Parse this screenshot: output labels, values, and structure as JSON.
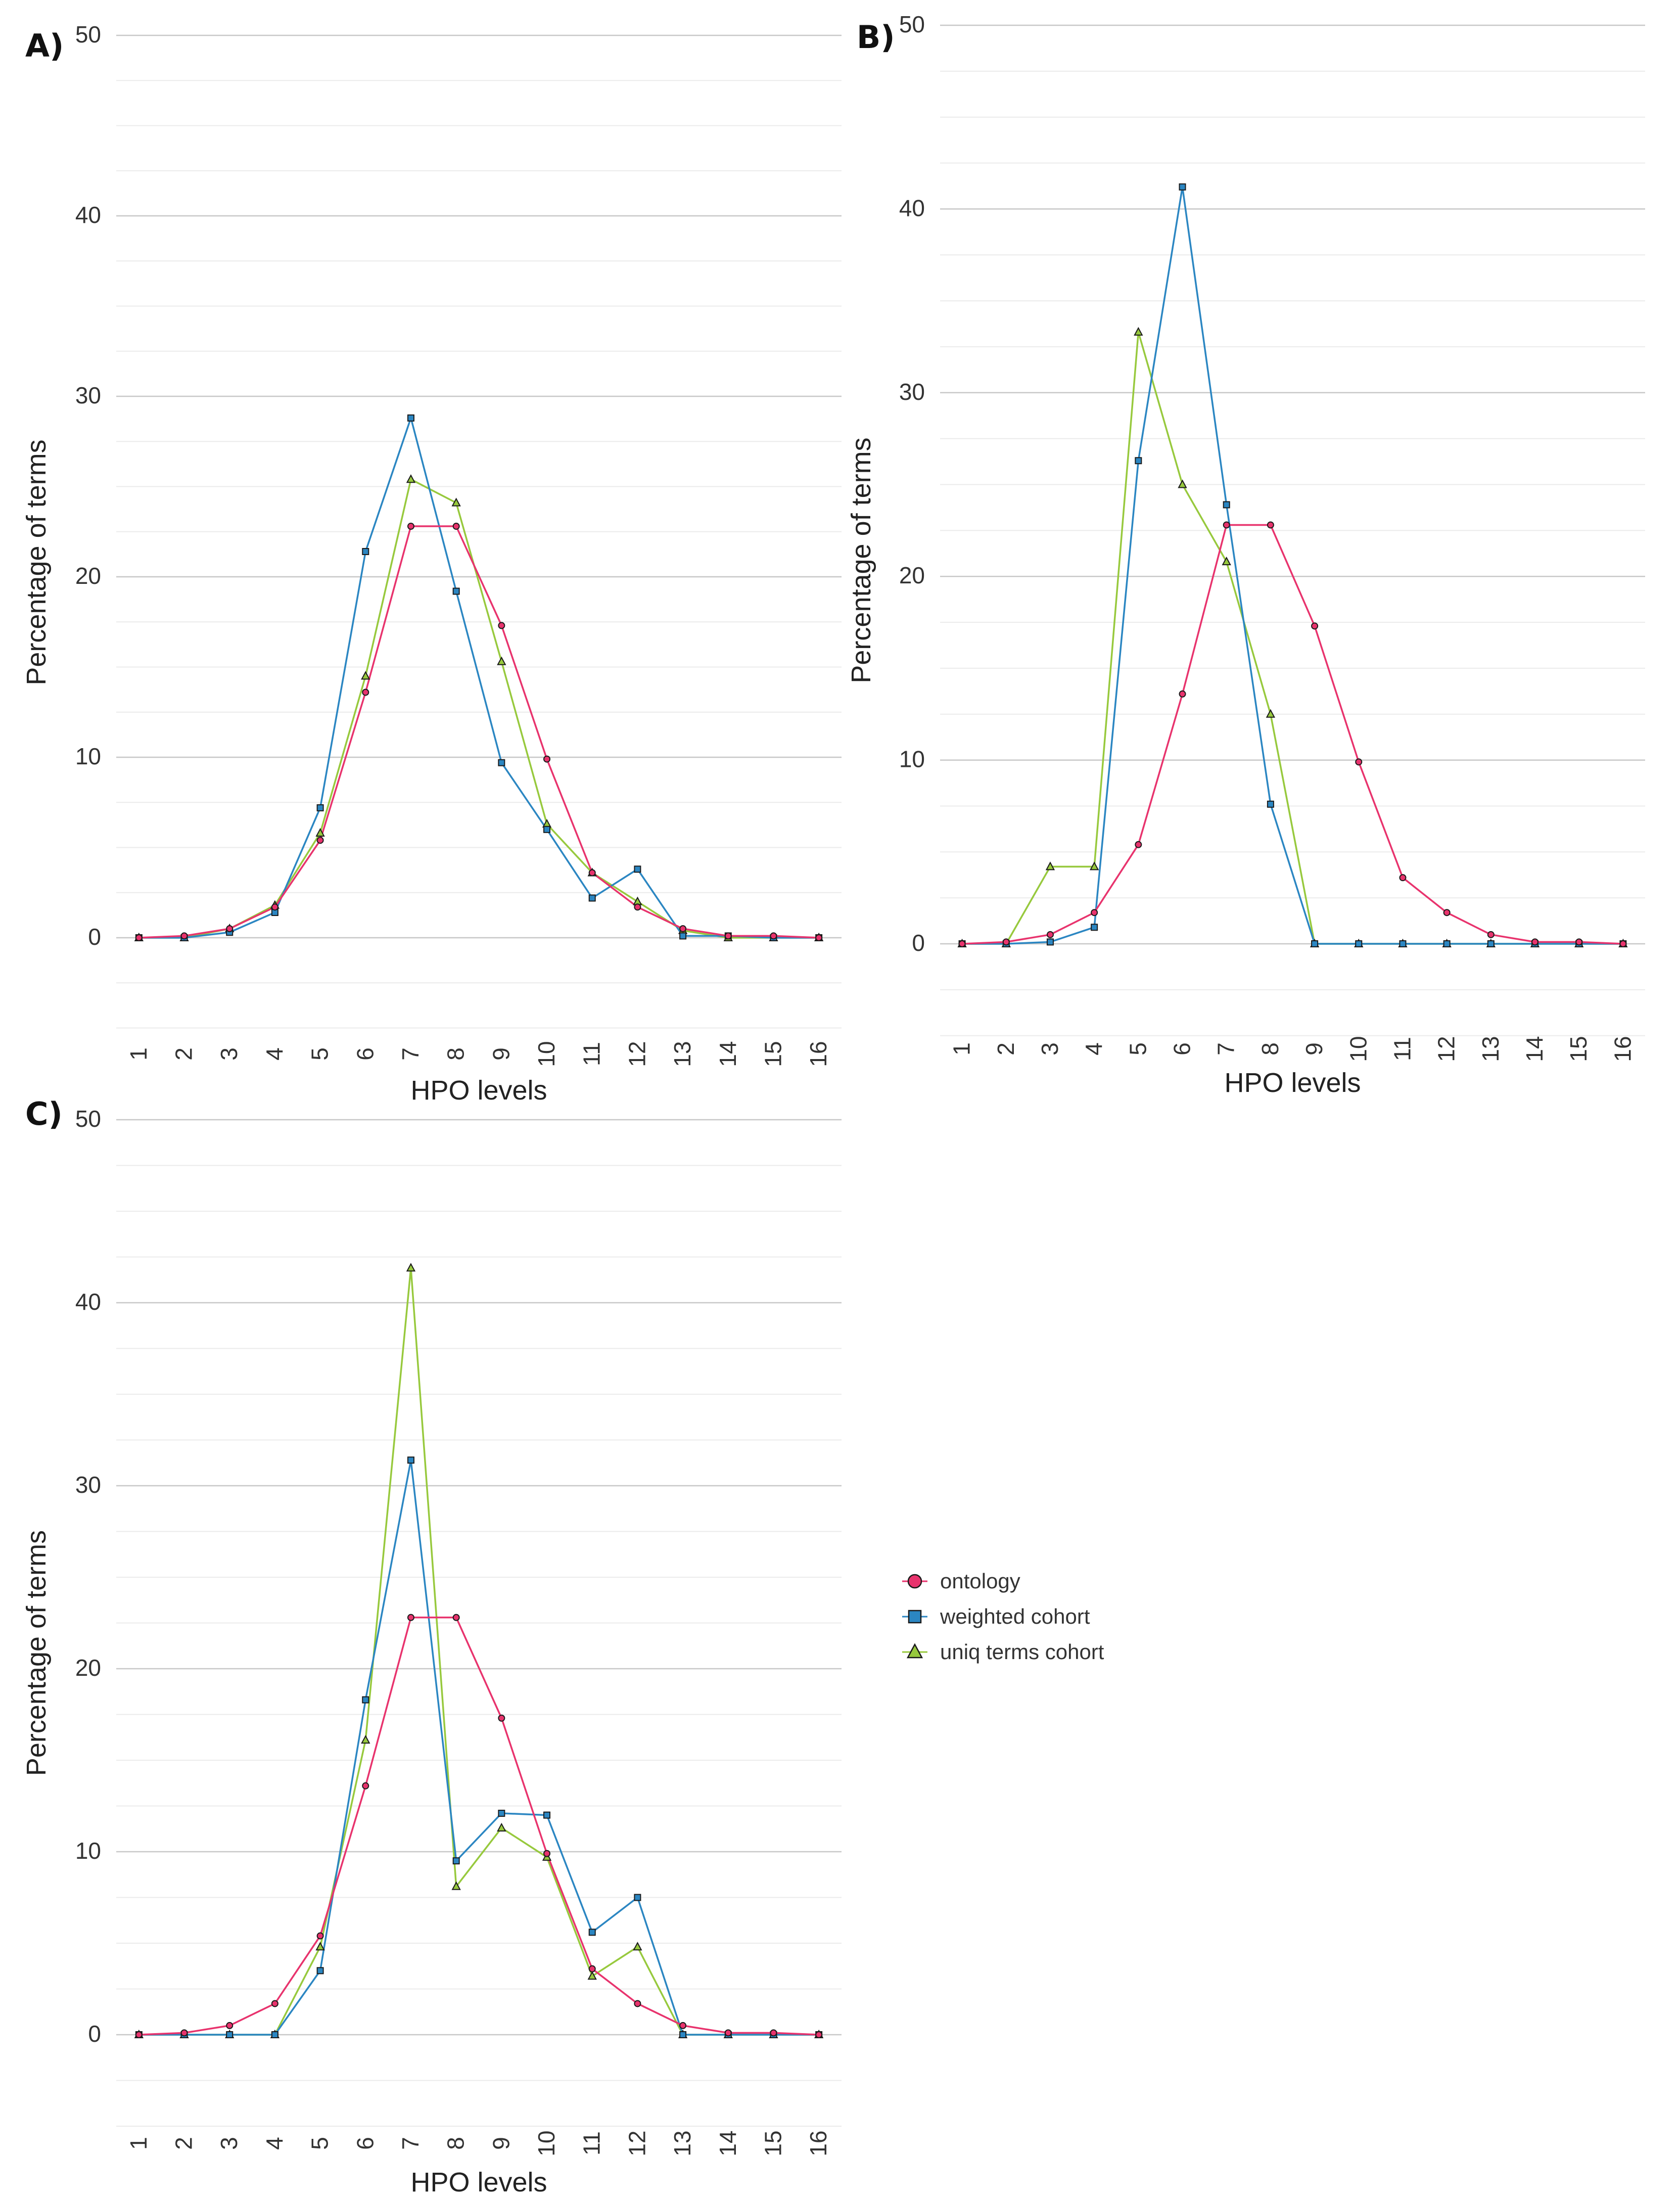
{
  "colors": {
    "ontology": "#e8336d",
    "weighted": "#2b86c2",
    "uniq": "#97c93d",
    "grid_major": "#c8c8c8",
    "grid_minor": "#ebebeb"
  },
  "legend": [
    {
      "key": "ontology",
      "label": "ontology",
      "marker": "circle"
    },
    {
      "key": "weighted",
      "label": "weighted cohort",
      "marker": "square"
    },
    {
      "key": "uniq",
      "label": "uniq terms cohort",
      "marker": "triangle"
    }
  ],
  "chart_data": [
    {
      "panel": "A)",
      "type": "line",
      "xlabel": "HPO levels",
      "ylabel": "Percentage of terms",
      "categories": [
        "1",
        "2",
        "3",
        "4",
        "5",
        "6",
        "7",
        "8",
        "9",
        "10",
        "11",
        "12",
        "13",
        "14",
        "15",
        "16"
      ],
      "yticks": [
        "0",
        "10",
        "20",
        "30",
        "40",
        "50"
      ],
      "ylim": [
        -5,
        50
      ],
      "series": [
        {
          "key": "ontology",
          "name": "ontology",
          "values": [
            0,
            0.1,
            0.5,
            1.7,
            5.4,
            13.6,
            22.8,
            22.8,
            17.3,
            9.9,
            3.6,
            1.7,
            0.5,
            0.1,
            0.1,
            0
          ]
        },
        {
          "key": "weighted",
          "name": "weighted cohort",
          "values": [
            0,
            0,
            0.3,
            1.4,
            7.2,
            21.4,
            28.8,
            19.2,
            9.7,
            6.0,
            2.2,
            3.8,
            0.1,
            0.1,
            0,
            0
          ]
        },
        {
          "key": "uniq",
          "name": "uniq terms cohort",
          "values": [
            0,
            0,
            0.5,
            1.8,
            5.8,
            14.5,
            25.4,
            24.1,
            15.3,
            6.3,
            3.6,
            2.0,
            0.4,
            0,
            0,
            0
          ]
        }
      ]
    },
    {
      "panel": "B)",
      "type": "line",
      "xlabel": "HPO levels",
      "ylabel": "Percentage of terms",
      "categories": [
        "1",
        "2",
        "3",
        "4",
        "5",
        "6",
        "7",
        "8",
        "9",
        "10",
        "11",
        "12",
        "13",
        "14",
        "15",
        "16"
      ],
      "yticks": [
        "0",
        "10",
        "20",
        "30",
        "40",
        "50"
      ],
      "ylim": [
        -5,
        50
      ],
      "series": [
        {
          "key": "ontology",
          "name": "ontology",
          "values": [
            0,
            0.1,
            0.5,
            1.7,
            5.4,
            13.6,
            22.8,
            22.8,
            17.3,
            9.9,
            3.6,
            1.7,
            0.5,
            0.1,
            0.1,
            0
          ]
        },
        {
          "key": "weighted",
          "name": "weighted cohort",
          "values": [
            0,
            0,
            0.1,
            0.9,
            26.3,
            41.2,
            23.9,
            7.6,
            0,
            0,
            0,
            0,
            0,
            0,
            0,
            0
          ]
        },
        {
          "key": "uniq",
          "name": "uniq terms cohort",
          "values": [
            0,
            0,
            4.2,
            4.2,
            33.3,
            25.0,
            20.8,
            12.5,
            0,
            0,
            0,
            0,
            0,
            0,
            0,
            0
          ]
        }
      ]
    },
    {
      "panel": "C)",
      "type": "line",
      "xlabel": "HPO levels",
      "ylabel": "Percentage of terms",
      "categories": [
        "1",
        "2",
        "3",
        "4",
        "5",
        "6",
        "7",
        "8",
        "9",
        "10",
        "11",
        "12",
        "13",
        "14",
        "15",
        "16"
      ],
      "yticks": [
        "0",
        "10",
        "20",
        "30",
        "40",
        "50"
      ],
      "ylim": [
        -5,
        50
      ],
      "series": [
        {
          "key": "ontology",
          "name": "ontology",
          "values": [
            0,
            0.1,
            0.5,
            1.7,
            5.4,
            13.6,
            22.8,
            22.8,
            17.3,
            9.9,
            3.6,
            1.7,
            0.5,
            0.1,
            0.1,
            0
          ]
        },
        {
          "key": "weighted",
          "name": "weighted cohort",
          "values": [
            0,
            0,
            0,
            0,
            3.5,
            18.3,
            31.4,
            9.5,
            12.1,
            12.0,
            5.6,
            7.5,
            0,
            0,
            0,
            0
          ]
        },
        {
          "key": "uniq",
          "name": "uniq terms cohort",
          "values": [
            0,
            0,
            0,
            0,
            4.8,
            16.1,
            41.9,
            8.1,
            11.3,
            9.7,
            3.2,
            4.8,
            0,
            0,
            0,
            0
          ]
        }
      ]
    }
  ]
}
